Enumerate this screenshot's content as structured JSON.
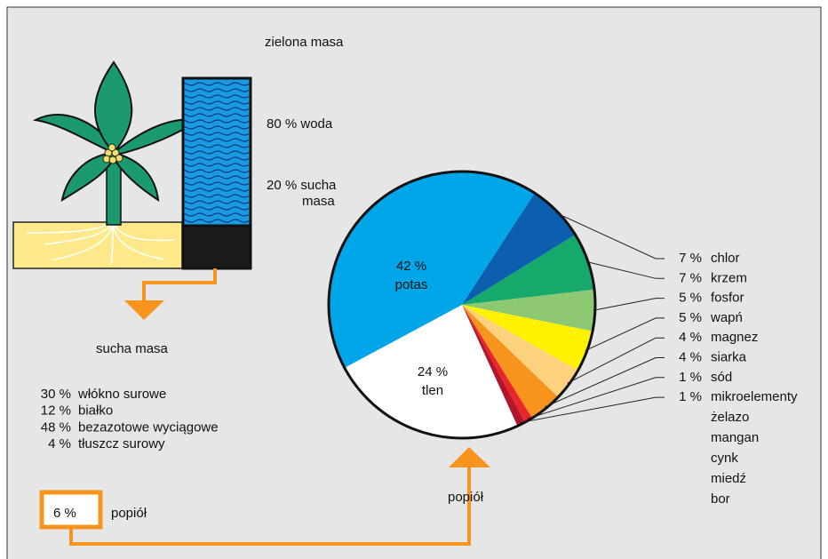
{
  "plant": {
    "title": "zielona masa",
    "water": "80 % woda",
    "dry": [
      "20 % sucha",
      "masa"
    ]
  },
  "dry_matter": {
    "title": "sucha masa",
    "items": [
      {
        "pct": "30 %",
        "name": "włókno surowe"
      },
      {
        "pct": "12 %",
        "name": "białko"
      },
      {
        "pct": "48 %",
        "name": "bezazotowe wyciągowe"
      },
      {
        "pct": "4 %",
        "name": "tłuszcz surowy"
      }
    ]
  },
  "ash": {
    "box": "6 %",
    "label": "popiół",
    "arrow_label": "popiół"
  },
  "chart_data": {
    "type": "pie",
    "categories": [
      "chlor",
      "krzem",
      "fosfor",
      "wapń",
      "magnez",
      "siarka",
      "sód",
      "mikroelementy",
      "tlen",
      "potas"
    ],
    "values": [
      7,
      7,
      5,
      5,
      4,
      4,
      1,
      1,
      24,
      42
    ],
    "value_labels": [
      "7 %",
      "7 %",
      "5 %",
      "5 %",
      "4 %",
      "4 %",
      "1 %",
      "1 %",
      "24 %",
      "42 %"
    ],
    "colors": [
      "#0b5fae",
      "#16a96c",
      "#8dc873",
      "#fff200",
      "#fdd27e",
      "#f7941d",
      "#e8262d",
      "#b3162b",
      "#ffffff",
      "#00a6e8"
    ],
    "microelements": [
      "żelazo",
      "mangan",
      "cynk",
      "miedź",
      "bor"
    ]
  }
}
